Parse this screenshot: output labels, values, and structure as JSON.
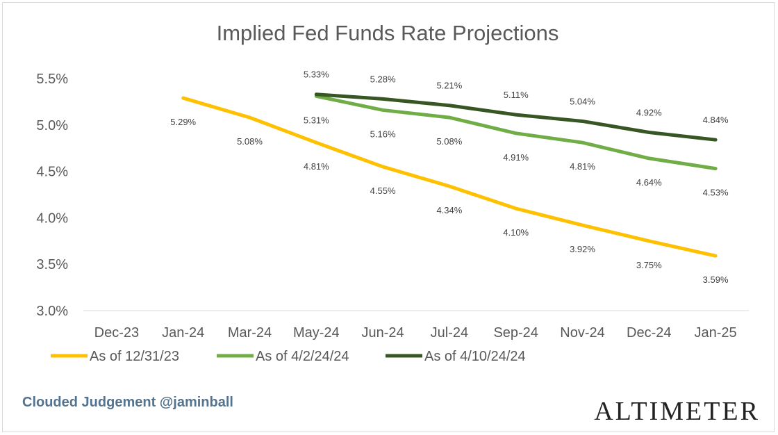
{
  "chart_data": {
    "type": "line",
    "title": "Implied Fed Funds Rate Projections",
    "categories": [
      "Dec-23",
      "Jan-24",
      "Mar-24",
      "May-24",
      "Jun-24",
      "Jul-24",
      "Sep-24",
      "Nov-24",
      "Dec-24",
      "Jan-25"
    ],
    "y_ticks": [
      "3.0%",
      "3.5%",
      "4.0%",
      "4.5%",
      "5.0%",
      "5.5%"
    ],
    "ylim": [
      3.0,
      5.5
    ],
    "grid": false,
    "legend_position": "bottom",
    "series": [
      {
        "name": "As of 12/31/23",
        "color": "#ffc000",
        "values": [
          null,
          5.29,
          5.08,
          4.81,
          4.55,
          4.34,
          4.1,
          3.92,
          3.75,
          3.59
        ],
        "labels": [
          "",
          "5.29%",
          "5.08%",
          "4.81%",
          "4.55%",
          "4.34%",
          "4.10%",
          "3.92%",
          "3.75%",
          "3.59%"
        ],
        "label_position": "below"
      },
      {
        "name": "As of 4/2/24/24",
        "color": "#70ad47",
        "values": [
          null,
          null,
          null,
          5.31,
          5.16,
          5.08,
          4.91,
          4.81,
          4.64,
          4.53
        ],
        "labels": [
          "",
          "",
          "",
          "5.31%",
          "5.16%",
          "5.08%",
          "4.91%",
          "4.81%",
          "4.64%",
          "4.53%"
        ],
        "label_position": "below"
      },
      {
        "name": "As of 4/10/24/24",
        "color": "#375623",
        "values": [
          null,
          null,
          null,
          5.33,
          5.28,
          5.21,
          5.11,
          5.04,
          4.92,
          4.84
        ],
        "labels": [
          "",
          "",
          "",
          "5.33%",
          "5.28%",
          "5.21%",
          "5.11%",
          "5.04%",
          "4.92%",
          "4.84%"
        ],
        "label_position": "above"
      }
    ]
  },
  "footer": {
    "credit": "Clouded Judgement @jaminball",
    "logo": "ALTIMETER"
  }
}
